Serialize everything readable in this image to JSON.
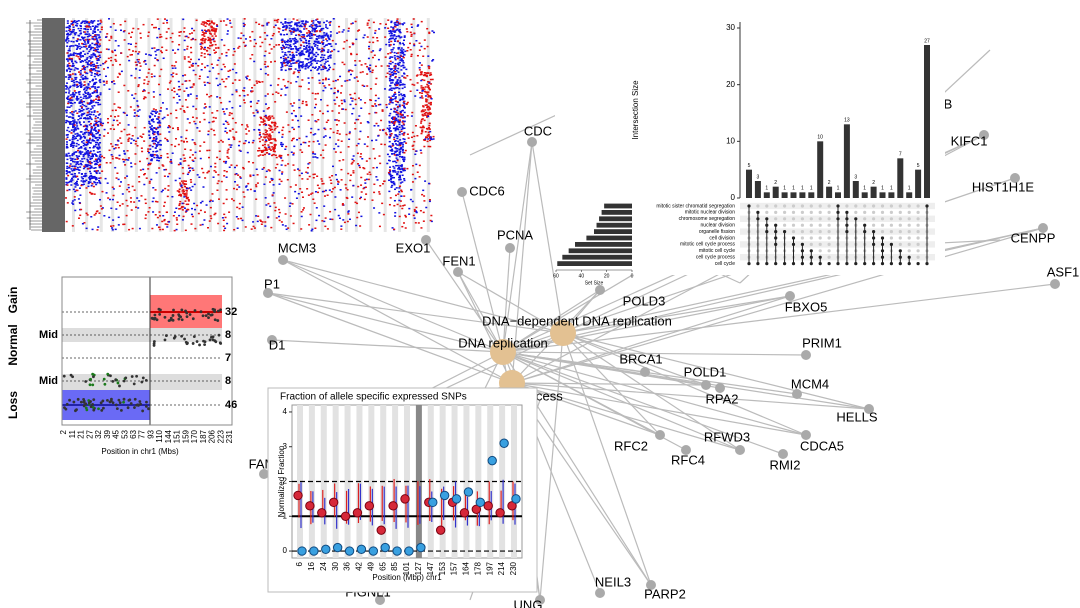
{
  "network": {
    "nodes": [
      "CDC",
      "CDC6",
      "MCM3",
      "EXO1",
      "FEN1",
      "PCNA",
      "P1",
      "D1",
      "POLD3",
      "BRCA1",
      "POLD1",
      "RPA2",
      "RFC2",
      "RFC4",
      "RFWD3",
      "RMI2",
      "CDCA5",
      "MCM4",
      "HELLS",
      "PRIM1",
      "FBXO5",
      "B",
      "KIFC1",
      "HIST1H1E",
      "CENPP",
      "ASF1",
      "FAM",
      "NEIL3",
      "PARP2",
      "FIGNL1",
      "UNG"
    ],
    "hubs": [
      "DNA−dependent DNA replication",
      "DNA replication",
      "process"
    ]
  },
  "cnv_plot": {
    "gain_label": "Gain",
    "normal_label": "Normal",
    "loss_label": "Loss",
    "mid_labels": [
      "Mid",
      "Mid"
    ],
    "level_labels": [
      32,
      8,
      7,
      8,
      46
    ],
    "xticks": [
      2,
      11,
      21,
      27,
      32,
      39,
      45,
      53,
      63,
      77,
      93,
      110,
      144,
      151,
      159,
      170,
      187,
      206,
      223,
      231
    ],
    "xlabel": "Position in chr1 (Mbs)"
  },
  "upset": {
    "ylabel": "Intersection Size",
    "ylim": [
      0,
      30
    ],
    "yticks": [
      0,
      10,
      20,
      30
    ],
    "bars": [
      5,
      3,
      1,
      2,
      1,
      1,
      1,
      1,
      10,
      2,
      1,
      13,
      3,
      1,
      2,
      1,
      1,
      7,
      1,
      5,
      27
    ],
    "sets": [
      "mitotic sister chromatid segregation",
      "mitotic nuclear division",
      "chromosome segregation",
      "nuclear division",
      "organelle fission",
      "cell division",
      "mitotic cell cycle process",
      "mitotic cell cycle",
      "cell cycle process",
      "cell cycle"
    ],
    "set_sizes": [
      22,
      24,
      26,
      28,
      30,
      36,
      45,
      50,
      55,
      59
    ],
    "set_size_lim": [
      0,
      60
    ],
    "set_size_ticks": [
      60,
      40,
      20,
      0
    ],
    "set_size_label": "Set Size"
  },
  "allele": {
    "title": "Fraction of allele specific expressed SNPs",
    "ylabel": "Normalized Fraction",
    "xlabel": "Position (Mbp) chr1",
    "ylim": [
      -0.2,
      4.2
    ],
    "yticks": [
      0,
      1,
      2,
      3,
      4
    ],
    "xticks": [
      6,
      16,
      24,
      30,
      36,
      42,
      49,
      65,
      85,
      101,
      127,
      147,
      153,
      157,
      164,
      178,
      197,
      214,
      230
    ],
    "ref_lines": [
      0,
      1,
      2
    ],
    "red": [
      1.6,
      1.3,
      1.1,
      1.4,
      1.0,
      1.1,
      1.3,
      0.6,
      1.3,
      1.5,
      null,
      1.4,
      0.6,
      1.4,
      1.1,
      1.2,
      1.3,
      1.1,
      1.3
    ],
    "blue": [
      0,
      0,
      0.05,
      0.1,
      0,
      0.05,
      0,
      0.1,
      0,
      0,
      0.1,
      1.4,
      1.6,
      1.5,
      1.7,
      1.4,
      2.6,
      3.1,
      1.5
    ]
  }
}
